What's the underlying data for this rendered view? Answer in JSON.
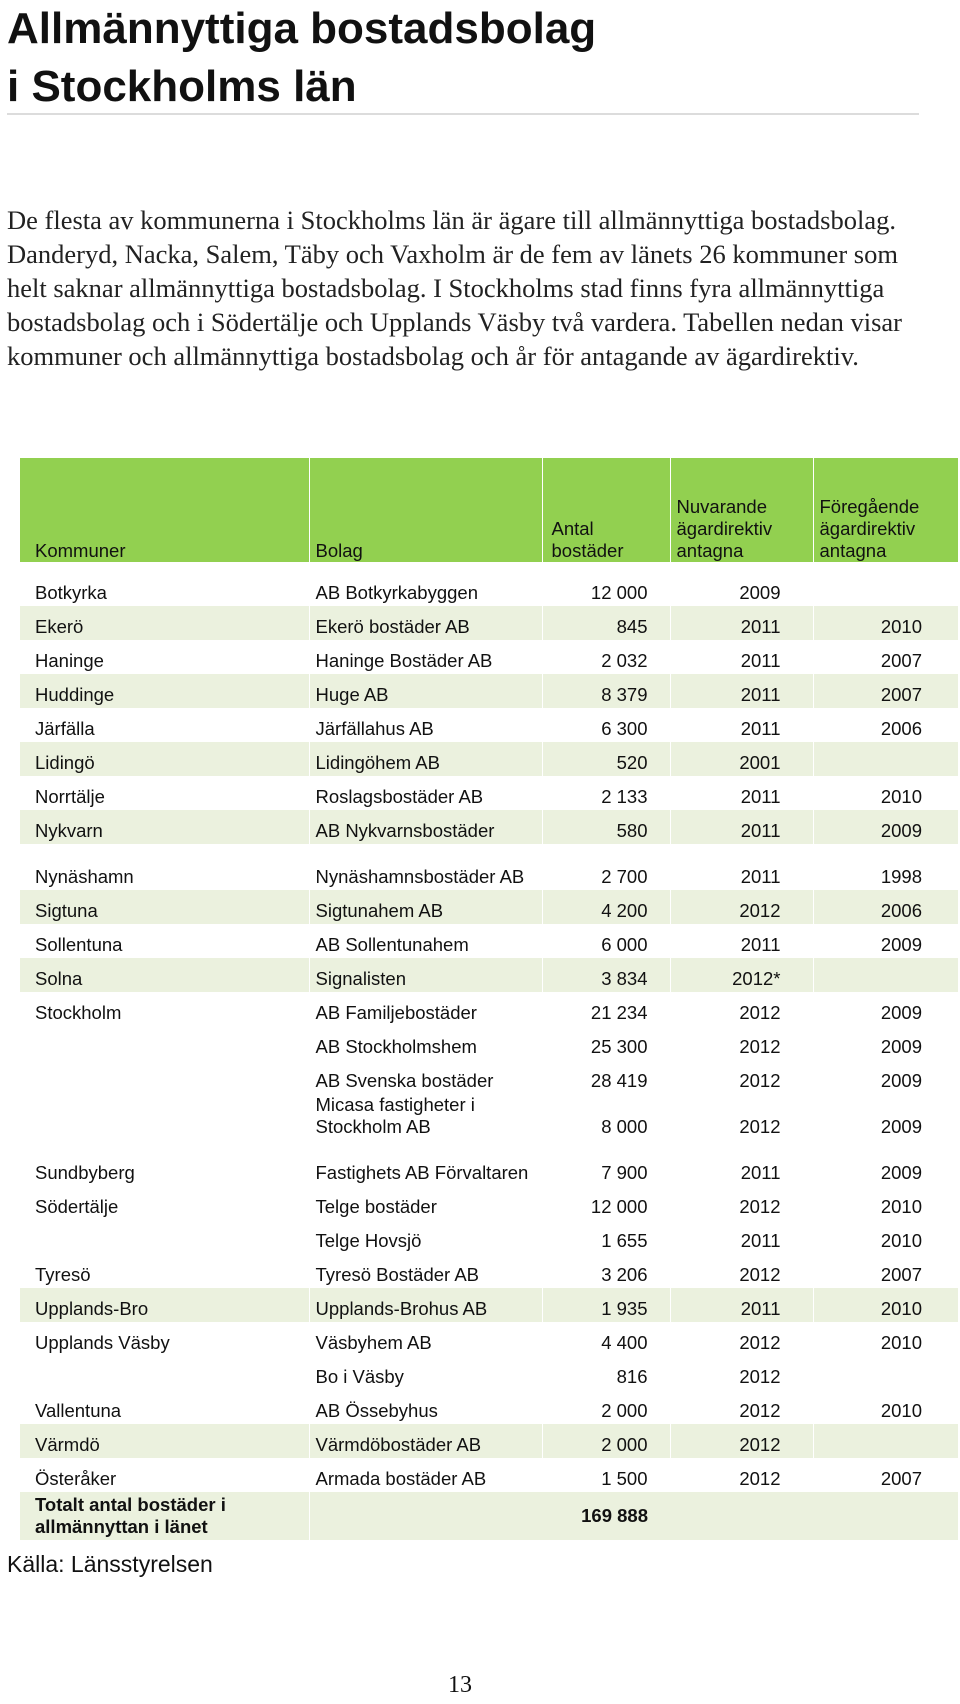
{
  "title_line1": "Allmännyttiga bostadsbolag",
  "title_line2": "i Stockholms län",
  "intro": "De flesta av kommunerna i Stockholms län är ägare till allmännyttiga bostadsbolag. Danderyd, Nacka, Salem, Täby och Vaxholm är de fem av länets 26 kommuner som helt saknar allmännyttiga bostadsbolag. I Stockholms stad finns fyra allmännyttiga bostadsbolag och i Södertälje och Upplands Väsby två vardera. Tabellen nedan visar kommuner och allmännyttiga bostadsbolag och år för antagande av ägardirektiv.",
  "table": {
    "headers": {
      "kommuner": "Kommuner",
      "bolag": "Bolag",
      "antal_l1": "Antal",
      "antal_l2": "bostäder",
      "nuv_l1": "Nuvarande",
      "nuv_l2": "ägardirektiv",
      "nuv_l3": "antagna",
      "foreg_l1": "Föregående",
      "foreg_l2": "ägardirektiv",
      "foreg_l3": "antagna"
    },
    "rows": [
      {
        "kommun": "Botkyrka",
        "bolag": "AB Botkyrkabyggen",
        "antal": "12 000",
        "nuv": "2009",
        "foreg": ""
      },
      {
        "kommun": "Ekerö",
        "bolag": "Ekerö bostäder AB",
        "antal": "845",
        "nuv": "2011",
        "foreg": "2010"
      },
      {
        "kommun": "Haninge",
        "bolag": "Haninge Bostäder AB",
        "antal": "2 032",
        "nuv": "2011",
        "foreg": "2007"
      },
      {
        "kommun": "Huddinge",
        "bolag": "Huge AB",
        "antal": "8 379",
        "nuv": "2011",
        "foreg": "2007"
      },
      {
        "kommun": "Järfälla",
        "bolag": "Järfällahus AB",
        "antal": "6 300",
        "nuv": "2011",
        "foreg": "2006"
      },
      {
        "kommun": "Lidingö",
        "bolag": "Lidingöhem AB",
        "antal": "520",
        "nuv": "2001",
        "foreg": ""
      },
      {
        "kommun": "Norrtälje",
        "bolag": "Roslagsbostäder AB",
        "antal": "2 133",
        "nuv": "2011",
        "foreg": "2010"
      },
      {
        "kommun": "Nykvarn",
        "bolag": "AB Nykvarnsbostäder",
        "antal": "580",
        "nuv": "2011",
        "foreg": "2009"
      },
      {
        "kommun": "Nynäshamn",
        "bolag": "Nynäshamnsbostäder AB",
        "antal": "2 700",
        "nuv": "2011",
        "foreg": "1998"
      },
      {
        "kommun": "Sigtuna",
        "bolag": "Sigtunahem AB",
        "antal": "4 200",
        "nuv": "2012",
        "foreg": "2006"
      },
      {
        "kommun": "Sollentuna",
        "bolag": "AB Sollentunahem",
        "antal": "6 000",
        "nuv": "2011",
        "foreg": "2009"
      },
      {
        "kommun": "Solna",
        "bolag": "Signalisten",
        "antal": "3 834",
        "nuv": "2012*",
        "foreg": ""
      },
      {
        "kommun": "Stockholm",
        "bolag": "AB Familjebostäder",
        "antal": "21 234",
        "nuv": "2012",
        "foreg": "2009"
      },
      {
        "kommun": "",
        "bolag": "AB Stockholmshem",
        "antal": "25 300",
        "nuv": "2012",
        "foreg": "2009"
      },
      {
        "kommun": "",
        "bolag": "AB Svenska bostäder",
        "antal": "28 419",
        "nuv": "2012",
        "foreg": "2009"
      },
      {
        "kommun": "",
        "bolag": "Micasa fastigheter i Stockholm AB",
        "antal": "8 000",
        "nuv": "2012",
        "foreg": "2009"
      },
      {
        "kommun": "Sundbyberg",
        "bolag": "Fastighets AB Förvaltaren",
        "antal": "7 900",
        "nuv": "2011",
        "foreg": "2009"
      },
      {
        "kommun": "Södertälje",
        "bolag": "Telge bostäder",
        "antal": "12 000",
        "nuv": "2012",
        "foreg": "2010"
      },
      {
        "kommun": "",
        "bolag": "Telge Hovsjö",
        "antal": "1 655",
        "nuv": "2011",
        "foreg": "2010"
      },
      {
        "kommun": "Tyresö",
        "bolag": "Tyresö Bostäder AB",
        "antal": "3 206",
        "nuv": "2012",
        "foreg": "2007"
      },
      {
        "kommun": "Upplands-Bro",
        "bolag": "Upplands-Brohus AB",
        "antal": "1 935",
        "nuv": "2011",
        "foreg": "2010"
      },
      {
        "kommun": "Upplands Väsby",
        "bolag": "Väsbyhem AB",
        "antal": "4 400",
        "nuv": "2012",
        "foreg": "2010"
      },
      {
        "kommun": "",
        "bolag": "Bo i Väsby",
        "antal": "816",
        "nuv": "2012",
        "foreg": ""
      },
      {
        "kommun": "Vallentuna",
        "bolag": "AB Össebyhus",
        "antal": "2 000",
        "nuv": "2012",
        "foreg": "2010"
      },
      {
        "kommun": "Värmdö",
        "bolag": "Värmdöbostäder AB",
        "antal": "2 000",
        "nuv": "2012",
        "foreg": ""
      },
      {
        "kommun": "Österåker",
        "bolag": "Armada bostäder AB",
        "antal": "1 500",
        "nuv": "2012",
        "foreg": "2007"
      }
    ],
    "total_label": "Totalt antal bostäder i allmännyttan i länet",
    "total_value": "169 888"
  },
  "source": "Källa: Länsstyrelsen",
  "page_number": "13",
  "colors": {
    "header_green": "#92d050",
    "row_shade": "#ebf1de"
  }
}
